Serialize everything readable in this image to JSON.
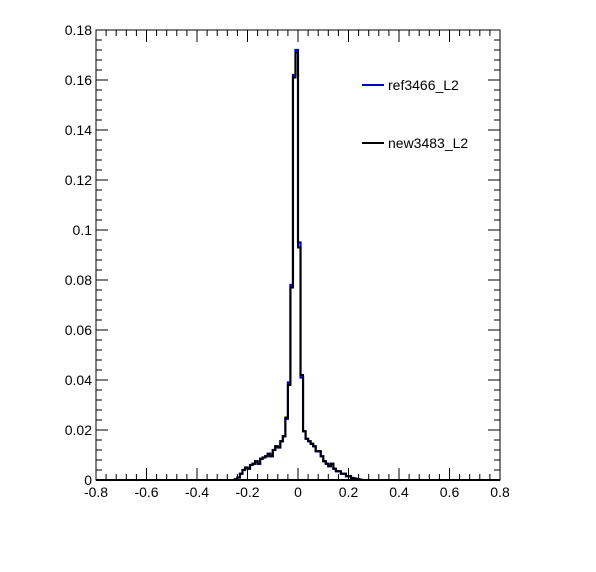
{
  "chart_data": {
    "type": "line",
    "title": "",
    "xlabel": "",
    "ylabel": "",
    "xlim": [
      -0.8,
      0.8
    ],
    "ylim": [
      0,
      0.18
    ],
    "xticks": [
      "-0.8",
      "-0.6",
      "-0.4",
      "-0.2",
      "0",
      "0.2",
      "0.4",
      "0.6",
      "0.8"
    ],
    "yticks": [
      "0",
      "0.02",
      "0.04",
      "0.06",
      "0.08",
      "0.1",
      "0.12",
      "0.14",
      "0.16",
      "0.18"
    ],
    "grid": false,
    "legend_position": "top-right",
    "bin_width": 0.01,
    "series": [
      {
        "name": "ref3466_L2",
        "color": "#0000cc",
        "bins": [
          [
            -0.25,
            0.0003
          ],
          [
            -0.24,
            0.001
          ],
          [
            -0.23,
            0.0025
          ],
          [
            -0.22,
            0.004
          ],
          [
            -0.21,
            0.005
          ],
          [
            -0.2,
            0.0045
          ],
          [
            -0.19,
            0.006
          ],
          [
            -0.18,
            0.0065
          ],
          [
            -0.17,
            0.0075
          ],
          [
            -0.16,
            0.0065
          ],
          [
            -0.15,
            0.0085
          ],
          [
            -0.14,
            0.009
          ],
          [
            -0.13,
            0.0095
          ],
          [
            -0.12,
            0.0105
          ],
          [
            -0.11,
            0.0095
          ],
          [
            -0.1,
            0.012
          ],
          [
            -0.09,
            0.0135
          ],
          [
            -0.08,
            0.013
          ],
          [
            -0.07,
            0.0155
          ],
          [
            -0.06,
            0.0175
          ],
          [
            -0.05,
            0.0245
          ],
          [
            -0.04,
            0.039
          ],
          [
            -0.03,
            0.078
          ],
          [
            -0.02,
            0.162
          ],
          [
            -0.01,
            0.172
          ],
          [
            0.0,
            0.095
          ],
          [
            0.01,
            0.041
          ],
          [
            0.02,
            0.0195
          ],
          [
            0.03,
            0.0165
          ],
          [
            0.04,
            0.0155
          ],
          [
            0.05,
            0.0145
          ],
          [
            0.06,
            0.0135
          ],
          [
            0.07,
            0.0115
          ],
          [
            0.08,
            0.0115
          ],
          [
            0.09,
            0.0095
          ],
          [
            0.1,
            0.0075
          ],
          [
            0.11,
            0.0065
          ],
          [
            0.12,
            0.0055
          ],
          [
            0.13,
            0.0065
          ],
          [
            0.14,
            0.0045
          ],
          [
            0.15,
            0.0035
          ],
          [
            0.16,
            0.0035
          ],
          [
            0.17,
            0.0025
          ],
          [
            0.18,
            0.0025
          ],
          [
            0.19,
            0.0015
          ],
          [
            0.2,
            0.0015
          ],
          [
            0.21,
            0.0008
          ],
          [
            0.22,
            0.0006
          ],
          [
            0.23,
            0.0004
          ],
          [
            0.24,
            0.0002
          ]
        ]
      },
      {
        "name": "new3483_L2",
        "color": "#000000",
        "bins": [
          [
            -0.25,
            0.0003
          ],
          [
            -0.24,
            0.001
          ],
          [
            -0.23,
            0.0025
          ],
          [
            -0.22,
            0.004
          ],
          [
            -0.21,
            0.005
          ],
          [
            -0.2,
            0.0045
          ],
          [
            -0.19,
            0.006
          ],
          [
            -0.18,
            0.0065
          ],
          [
            -0.17,
            0.0075
          ],
          [
            -0.16,
            0.0065
          ],
          [
            -0.15,
            0.0085
          ],
          [
            -0.14,
            0.009
          ],
          [
            -0.13,
            0.0095
          ],
          [
            -0.12,
            0.0105
          ],
          [
            -0.11,
            0.0095
          ],
          [
            -0.1,
            0.012
          ],
          [
            -0.09,
            0.0135
          ],
          [
            -0.08,
            0.013
          ],
          [
            -0.07,
            0.0155
          ],
          [
            -0.06,
            0.0175
          ],
          [
            -0.05,
            0.025
          ],
          [
            -0.04,
            0.038
          ],
          [
            -0.03,
            0.077
          ],
          [
            -0.02,
            0.161
          ],
          [
            -0.01,
            0.171
          ],
          [
            0.0,
            0.093
          ],
          [
            0.01,
            0.042
          ],
          [
            0.02,
            0.0195
          ],
          [
            0.03,
            0.0165
          ],
          [
            0.04,
            0.0155
          ],
          [
            0.05,
            0.0145
          ],
          [
            0.06,
            0.0135
          ],
          [
            0.07,
            0.0115
          ],
          [
            0.08,
            0.0115
          ],
          [
            0.09,
            0.0095
          ],
          [
            0.1,
            0.0075
          ],
          [
            0.11,
            0.0065
          ],
          [
            0.12,
            0.0055
          ],
          [
            0.13,
            0.0065
          ],
          [
            0.14,
            0.0045
          ],
          [
            0.15,
            0.0035
          ],
          [
            0.16,
            0.0035
          ],
          [
            0.17,
            0.0025
          ],
          [
            0.18,
            0.0025
          ],
          [
            0.19,
            0.0015
          ],
          [
            0.2,
            0.0015
          ],
          [
            0.21,
            0.0008
          ],
          [
            0.22,
            0.0006
          ],
          [
            0.23,
            0.0004
          ],
          [
            0.24,
            0.0002
          ]
        ]
      }
    ]
  }
}
